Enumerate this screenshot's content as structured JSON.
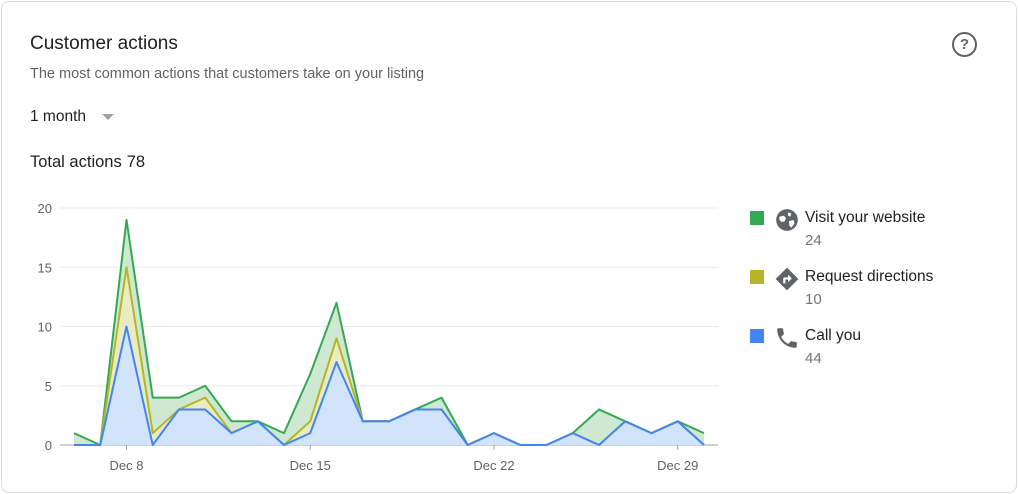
{
  "card": {
    "title": "Customer actions",
    "subtitle": "The most common actions that customers take on your listing",
    "range_label": "1 month",
    "total_label": "Total actions",
    "total_value": "78",
    "help_icon": "help-circle-icon"
  },
  "legend": [
    {
      "label": "Visit your website",
      "count": "24",
      "color": "#34a853",
      "icon": "globe-icon"
    },
    {
      "label": "Request directions",
      "count": "10",
      "color": "#b5b52a",
      "icon": "directions-icon"
    },
    {
      "label": "Call you",
      "count": "44",
      "color": "#4285f4",
      "icon": "phone-icon"
    }
  ],
  "chart_data": {
    "type": "area",
    "stacked": true,
    "x": [
      "Dec 6",
      "Dec 7",
      "Dec 8",
      "Dec 9",
      "Dec 10",
      "Dec 11",
      "Dec 12",
      "Dec 13",
      "Dec 14",
      "Dec 15",
      "Dec 16",
      "Dec 17",
      "Dec 18",
      "Dec 19",
      "Dec 20",
      "Dec 21",
      "Dec 22",
      "Dec 23",
      "Dec 24",
      "Dec 25",
      "Dec 26",
      "Dec 27",
      "Dec 28",
      "Dec 29",
      "Dec 30"
    ],
    "x_ticks": [
      "Dec 8",
      "Dec 15",
      "Dec 22",
      "Dec 29"
    ],
    "ylim": [
      0,
      20
    ],
    "y_ticks": [
      0,
      5,
      10,
      15,
      20
    ],
    "grid": true,
    "series": [
      {
        "name": "Call you",
        "color": "#4285f4",
        "fill": "#d2e3fc",
        "values": [
          0,
          0,
          10,
          0,
          3,
          3,
          1,
          2,
          0,
          1,
          7,
          2,
          2,
          3,
          3,
          0,
          1,
          0,
          0,
          1,
          0,
          2,
          1,
          2,
          0
        ]
      },
      {
        "name": "Request directions",
        "color": "#b5b52a",
        "fill": "#e9ecc1",
        "values": [
          0,
          0,
          5,
          1,
          0,
          1,
          0,
          0,
          0,
          1,
          2,
          0,
          0,
          0,
          0,
          0,
          0,
          0,
          0,
          0,
          0,
          0,
          0,
          0,
          0
        ]
      },
      {
        "name": "Visit your website",
        "color": "#34a853",
        "fill": "#cfe8d2",
        "values": [
          1,
          0,
          4,
          3,
          1,
          1,
          1,
          0,
          1,
          4,
          3,
          0,
          0,
          0,
          1,
          0,
          0,
          0,
          0,
          0,
          3,
          0,
          0,
          0,
          1
        ]
      }
    ]
  }
}
